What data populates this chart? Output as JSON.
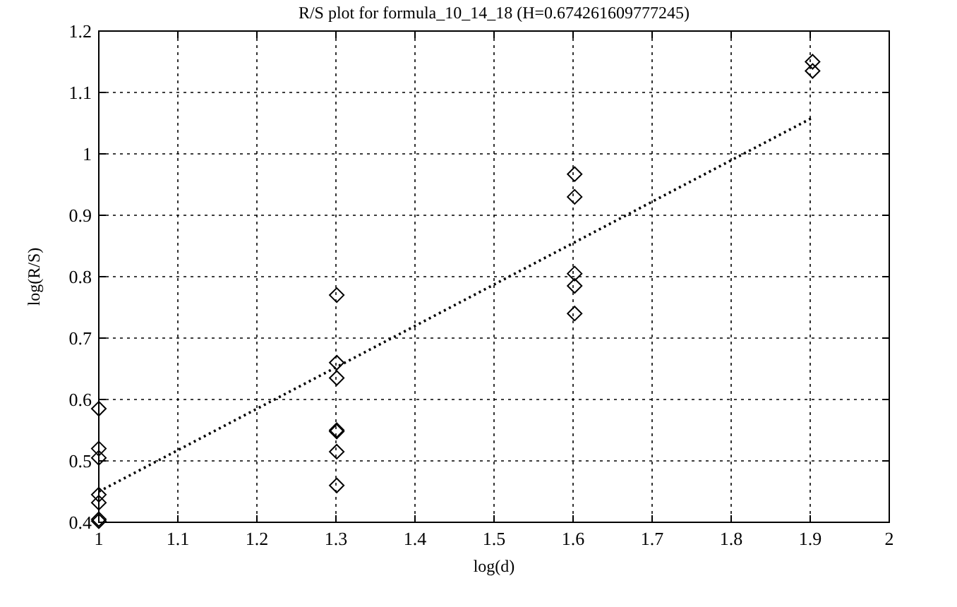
{
  "chart_data": {
    "type": "scatter",
    "title": "R/S plot for formula_10_14_18 (H=0.674261609777245)",
    "xlabel": "log(d)",
    "ylabel": "log(R/S)",
    "xlim": [
      1,
      2
    ],
    "xticks": [
      1,
      1.1,
      1.2,
      1.3,
      1.4,
      1.5,
      1.6,
      1.7,
      1.8,
      1.9,
      2
    ],
    "ylim": [
      0.4,
      1.2
    ],
    "yticks": [
      0.4,
      0.5,
      0.6,
      0.7,
      0.8,
      0.9,
      1,
      1.1,
      1.2
    ],
    "grid": true,
    "series": [
      {
        "color": "#000000",
        "marker": "diamond",
        "x": [
          1,
          1,
          1,
          1,
          1,
          1,
          1,
          1.301,
          1.301,
          1.301,
          1.301,
          1.301,
          1.301,
          1.301,
          1.602,
          1.602,
          1.602,
          1.602,
          1.602,
          1.903,
          1.903
        ],
        "values": [
          0.585,
          0.52,
          0.505,
          0.445,
          0.432,
          0.405,
          0.402,
          0.77,
          0.66,
          0.635,
          0.55,
          0.548,
          0.515,
          0.46,
          0.967,
          0.93,
          0.805,
          0.785,
          0.74,
          1.15,
          1.135
        ]
      },
      {
        "type": "line",
        "color": "#000000",
        "marker": "none",
        "line_style": "dotted",
        "x": [
          1,
          1.903
        ],
        "values": [
          0.45,
          1.059
        ]
      }
    ]
  }
}
